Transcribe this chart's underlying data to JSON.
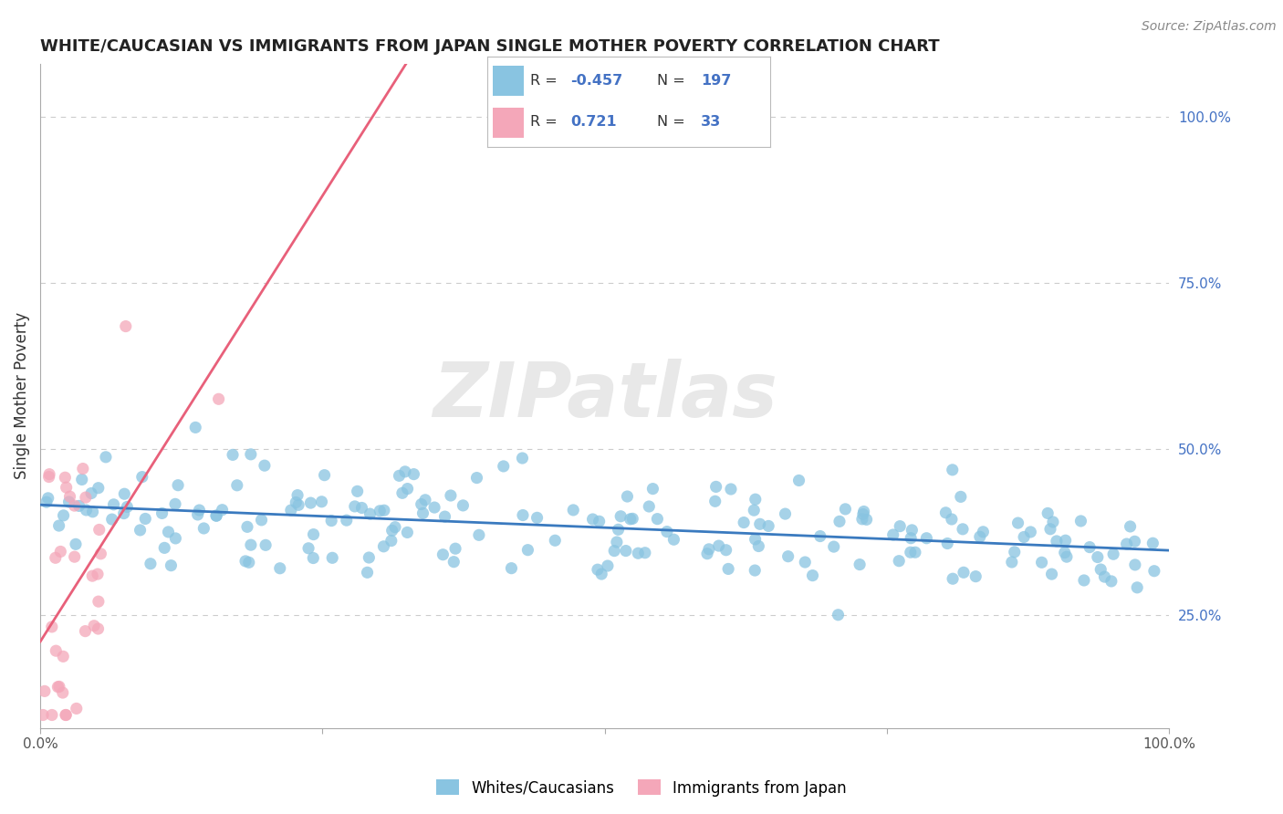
{
  "title": "WHITE/CAUCASIAN VS IMMIGRANTS FROM JAPAN SINGLE MOTHER POVERTY CORRELATION CHART",
  "source_text": "Source: ZipAtlas.com",
  "ylabel": "Single Mother Poverty",
  "watermark": "ZIPatlas",
  "blue_R": -0.457,
  "blue_N": 197,
  "pink_R": 0.721,
  "pink_N": 33,
  "blue_label": "Whites/Caucasians",
  "pink_label": "Immigrants from Japan",
  "blue_color": "#89c4e1",
  "pink_color": "#f4a7b9",
  "blue_line_color": "#3a7abf",
  "pink_line_color": "#e8607a",
  "background_color": "#ffffff",
  "grid_color": "#cccccc",
  "xlim": [
    0.0,
    1.0
  ],
  "ylim": [
    0.08,
    1.08
  ],
  "right_yticks": [
    0.25,
    0.5,
    0.75,
    1.0
  ],
  "right_ytick_labels": [
    "25.0%",
    "50.0%",
    "75.0%",
    "100.0%"
  ],
  "xticks": [
    0.0,
    0.25,
    0.5,
    0.75,
    1.0
  ],
  "xtick_labels": [
    "0.0%",
    "",
    "",
    "",
    "100.0%"
  ],
  "blue_seed": 42,
  "pink_seed": 123
}
